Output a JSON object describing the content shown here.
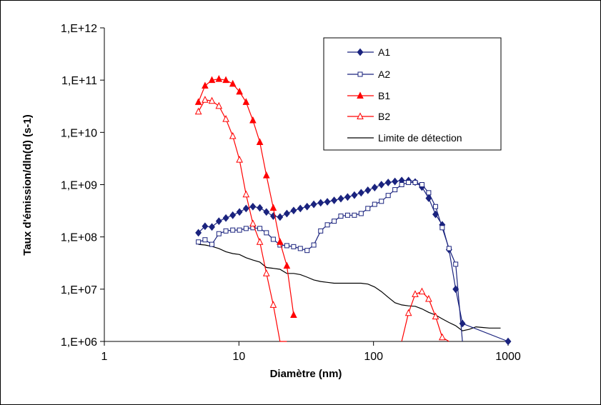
{
  "chart_data": {
    "type": "line",
    "xscale": "log",
    "yscale": "log",
    "xlim": [
      1,
      1000
    ],
    "ylim": [
      1000000,
      1000000000000
    ],
    "xlabel": "Diamètre (nm)",
    "ylabel": "Taux d'émission/dln(d) (s-1)",
    "xticks": [
      "1",
      "10",
      "100",
      "1000"
    ],
    "yticks": [
      "1,E+06",
      "1,E+07",
      "1,E+08",
      "1,E+09",
      "1,E+10",
      "1,E+11",
      "1,E+12"
    ],
    "legend_position": "top-right",
    "grid": false,
    "series": [
      {
        "name": "A1",
        "color": "#1a237e",
        "marker": "diamond-filled",
        "x": [
          5,
          5.6,
          6.3,
          7.1,
          8,
          9,
          10.1,
          11.3,
          12.7,
          14.3,
          16,
          18,
          20.2,
          22.7,
          25.5,
          28.6,
          32.1,
          36,
          40.5,
          45.4,
          51,
          57.2,
          64.2,
          72.1,
          80.9,
          90.8,
          102,
          114.5,
          128.5,
          144.3,
          162,
          182,
          204,
          229,
          257,
          289,
          324,
          364,
          408,
          458,
          1000
        ],
        "y": [
          120000000,
          160000000,
          155000000,
          200000000,
          230000000,
          260000000,
          300000000,
          350000000,
          380000000,
          360000000,
          300000000,
          250000000,
          240000000,
          280000000,
          320000000,
          350000000,
          380000000,
          420000000,
          450000000,
          470000000,
          500000000,
          540000000,
          580000000,
          630000000,
          700000000,
          780000000,
          880000000,
          1000000000,
          1100000000,
          1150000000,
          1200000000,
          1200000000,
          1120000000,
          900000000,
          550000000,
          270000000,
          170000000,
          57000000,
          10000000,
          2200000,
          1000000
        ]
      },
      {
        "name": "A2",
        "color": "#1a237e",
        "marker": "square-open",
        "x": [
          5,
          5.6,
          6.3,
          7.1,
          8,
          9,
          10.1,
          11.3,
          12.7,
          14.3,
          16,
          18,
          20.2,
          22.7,
          25.5,
          28.6,
          32.1,
          36,
          40.5,
          45.4,
          51,
          57.2,
          64.2,
          72.1,
          80.9,
          90.8,
          102,
          114.5,
          128.5,
          144.3,
          162,
          182,
          204,
          229,
          257,
          289,
          324,
          364,
          408,
          458
        ],
        "y": [
          80000000,
          88000000,
          72000000,
          115000000,
          130000000,
          135000000,
          135000000,
          145000000,
          150000000,
          145000000,
          120000000,
          90000000,
          70000000,
          68000000,
          65000000,
          60000000,
          55000000,
          70000000,
          130000000,
          170000000,
          200000000,
          250000000,
          260000000,
          260000000,
          280000000,
          350000000,
          420000000,
          480000000,
          620000000,
          800000000,
          1000000000,
          1100000000,
          1100000000,
          1000000000,
          700000000,
          380000000,
          150000000,
          60000000,
          30000000,
          1000000
        ]
      },
      {
        "name": "B1",
        "color": "#ff0000",
        "marker": "triangle-filled",
        "x": [
          5,
          5.6,
          6.3,
          7.1,
          8,
          9,
          10.1,
          11.3,
          12.7,
          14.3,
          16,
          18,
          20.2,
          22.7,
          25.5
        ],
        "y": [
          38000000000,
          78000000000,
          100000000000,
          105000000000,
          100000000000,
          85000000000,
          60000000000,
          38000000000,
          17000000000,
          6500000000,
          1500000000,
          360000000,
          80000000,
          28000000,
          3200000
        ]
      },
      {
        "name": "B2",
        "color": "#ff0000",
        "marker": "triangle-open",
        "x": [
          5,
          5.6,
          6.3,
          7.1,
          8,
          9,
          10.1,
          11.3,
          12.7,
          14.3,
          16,
          18,
          20.2,
          22.7,
          162,
          182,
          204,
          229,
          257,
          289,
          324,
          364
        ],
        "y": [
          25000000000,
          42000000000,
          40000000000,
          32000000000,
          18000000000,
          8500000000,
          3000000000,
          650000000,
          180000000,
          80000000,
          20000000,
          5000000,
          1000000,
          1000000,
          1000000,
          3500000,
          8000000,
          9000000,
          6500000,
          3000000,
          1200000,
          1000000
        ]
      },
      {
        "name": "Limite de détection",
        "color": "#000000",
        "marker": "none",
        "x": [
          5,
          5.6,
          6.3,
          7.1,
          8,
          9,
          10.1,
          11.3,
          12.7,
          14.3,
          16,
          18,
          20.2,
          22.7,
          25.5,
          28.6,
          32.1,
          36,
          40.5,
          45.4,
          51,
          57.2,
          64.2,
          72.1,
          80.9,
          90.8,
          102,
          114.5,
          128.5,
          144.3,
          162,
          182,
          204,
          229,
          257,
          289,
          324,
          364,
          408,
          458,
          514,
          577,
          648,
          727,
          816,
          880
        ],
        "y": [
          72000000,
          70000000,
          66000000,
          60000000,
          52000000,
          48000000,
          46000000,
          40000000,
          36000000,
          33000000,
          26000000,
          25000000,
          24000000,
          20000000,
          20000000,
          19000000,
          17000000,
          15000000,
          14000000,
          13500000,
          13000000,
          13000000,
          13000000,
          13000000,
          13000000,
          12500000,
          11000000,
          9000000,
          7000000,
          5500000,
          5000000,
          4800000,
          4700000,
          4200000,
          3600000,
          3200000,
          2700000,
          2300000,
          2000000,
          1600000,
          1700000,
          1900000,
          1850000,
          1800000,
          1800000,
          1800000
        ]
      }
    ]
  }
}
